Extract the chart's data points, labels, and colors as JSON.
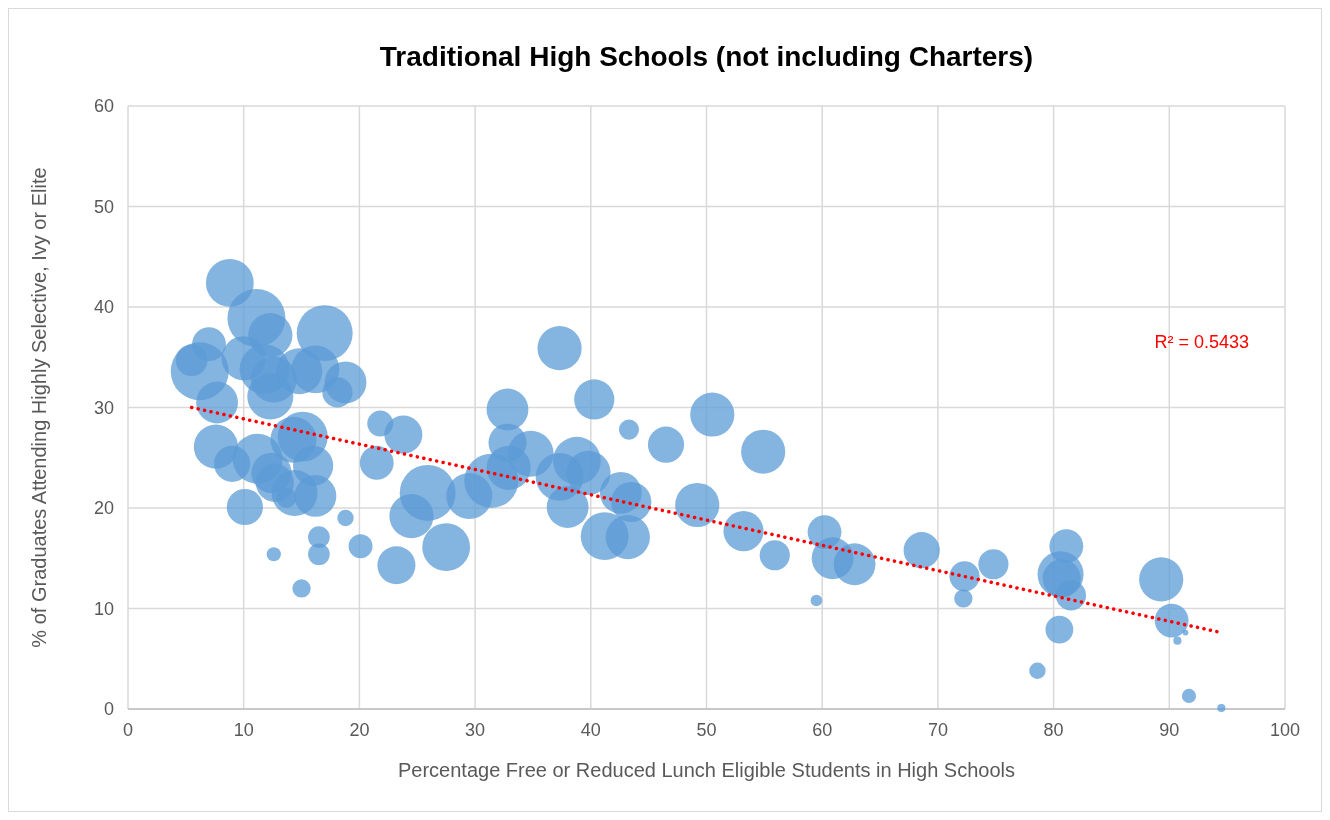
{
  "chart_data": {
    "type": "bubble",
    "title": "Traditional High Schools (not including Charters)",
    "xlabel": "Percentage Free or Reduced Lunch Eligible Students in High Schools",
    "ylabel": "% of Graduates Attending Highly Selective, Ivy or Elite",
    "xlim": [
      0,
      100
    ],
    "xticks": [
      0,
      10,
      20,
      30,
      40,
      50,
      60,
      70,
      80,
      90,
      100
    ],
    "ylim": [
      0,
      60
    ],
    "yticks": [
      0,
      10,
      20,
      30,
      40,
      50,
      60
    ],
    "grid": true,
    "annotations": [
      "R² = 0.5433"
    ],
    "series": [
      {
        "color": "#5b9bd5",
        "x": [
          8.8,
          11.1,
          12.3,
          17.0,
          7.0,
          6.2,
          5.5,
          10.0,
          11.8,
          12.6,
          12.3,
          14.8,
          16.2,
          18.8,
          18.1,
          7.7,
          7.6,
          9.0,
          11.2,
          14.3,
          15.1,
          16.0,
          12.4,
          12.7,
          14.4,
          13.7,
          16.2,
          10.1,
          21.8,
          23.8,
          21.5,
          18.8,
          16.5,
          16.5,
          12.6,
          15.0,
          20.1,
          23.2,
          25.9,
          24.5,
          27.5,
          37.3,
          40.3,
          32.8,
          50.5,
          43.3,
          46.5,
          54.9,
          32.8,
          34.8,
          32.9,
          31.4,
          29.5,
          38.8,
          39.8,
          37.3,
          38.0,
          42.6,
          43.5,
          41.2,
          43.2,
          49.2,
          53.2,
          55.9,
          60.2,
          60.9,
          62.8,
          59.5,
          68.6,
          72.3,
          72.2,
          74.8,
          81.1,
          80.6,
          80.7,
          81.5,
          80.5,
          78.6,
          89.3,
          90.2,
          91.4,
          90.7,
          91.7,
          94.5
        ],
        "values": [
          42.4,
          38.9,
          37.2,
          37.4,
          36.3,
          33.6,
          34.7,
          34.9,
          33.8,
          32.8,
          31.1,
          33.6,
          33.8,
          32.5,
          31.5,
          30.5,
          26.1,
          24.4,
          24.9,
          26.8,
          27.1,
          24.2,
          23.5,
          22.5,
          21.5,
          21.0,
          21.2,
          20.1,
          28.4,
          27.3,
          24.5,
          19.0,
          17.1,
          15.4,
          15.4,
          12.0,
          16.2,
          14.3,
          21.5,
          19.2,
          16.1,
          35.9,
          30.8,
          29.8,
          29.3,
          27.8,
          26.3,
          25.6,
          26.5,
          25.4,
          24.0,
          22.7,
          21.2,
          24.7,
          23.5,
          23.1,
          20.1,
          21.5,
          20.6,
          17.2,
          17.1,
          20.3,
          17.7,
          15.3,
          17.6,
          15.0,
          14.4,
          10.8,
          15.8,
          13.2,
          11.0,
          14.4,
          16.2,
          13.4,
          13.0,
          11.3,
          7.9,
          3.8,
          12.9,
          8.8,
          7.6,
          6.8,
          1.3,
          0.1
        ],
        "sizes": [
          0.68,
          1,
          0.58,
          0.93,
          0.34,
          1,
          0.3,
          0.58,
          0.74,
          0.63,
          0.63,
          0.63,
          0.68,
          0.52,
          0.27,
          0.52,
          0.58,
          0.39,
          0.74,
          0.63,
          0.74,
          0.48,
          0.48,
          0.43,
          0.63,
          0.12,
          0.52,
          0.39,
          0.2,
          0.43,
          0.34,
          0.08,
          0.14,
          0.14,
          0.06,
          0.1,
          0.17,
          0.43,
          0.93,
          0.58,
          0.68,
          0.58,
          0.48,
          0.52,
          0.58,
          0.12,
          0.39,
          0.58,
          0.43,
          0.63,
          0.58,
          0.87,
          0.63,
          0.68,
          0.58,
          0.68,
          0.52,
          0.52,
          0.48,
          0.68,
          0.58,
          0.58,
          0.48,
          0.27,
          0.34,
          0.52,
          0.52,
          0.04,
          0.39,
          0.27,
          0.1,
          0.27,
          0.34,
          0.63,
          0.43,
          0.27,
          0.23,
          0.08,
          0.58,
          0.34,
          0.01,
          0.02,
          0.06,
          0.02
        ]
      },
      {
        "type": "line",
        "color": "#ff0000",
        "line_style": "dotted",
        "marker": "none",
        "x": [
          5.5,
          94.5
        ],
        "values": [
          30,
          7.6
        ]
      }
    ]
  }
}
